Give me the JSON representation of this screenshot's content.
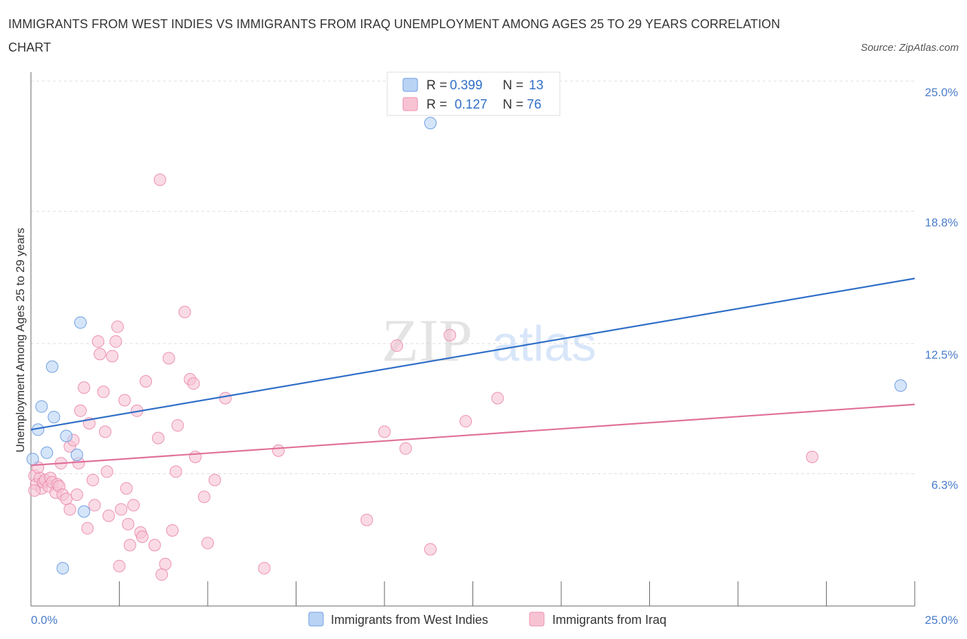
{
  "title": "IMMIGRANTS FROM WEST INDIES VS IMMIGRANTS FROM IRAQ UNEMPLOYMENT AMONG AGES 25 TO 29 YEARS CORRELATION CHART",
  "source": "Source: ZipAtlas.com",
  "watermark": {
    "zip": "ZIP",
    "atlas": "atlas"
  },
  "colors": {
    "blue": "#2f6ec7",
    "blue_fill": "#b9d3f5",
    "blue_stroke": "#6e9ee0",
    "pink": "#e0709a",
    "pink_fill": "#f7c3d3",
    "pink_stroke": "#ec8fb0",
    "grid": "#dddddd",
    "axis": "#666666"
  },
  "legend": {
    "r_label": "R =",
    "n_label": "N =",
    "blue": {
      "r": "0.399",
      "n": "13"
    },
    "pink": {
      "r": "0.127",
      "n": "76"
    }
  },
  "chart_data": {
    "type": "scatter",
    "title": "IMMIGRANTS FROM WEST INDIES VS IMMIGRANTS FROM IRAQ UNEMPLOYMENT AMONG AGES 25 TO 29 YEARS CORRELATION CHART",
    "xlabel": "",
    "ylabel": "Unemployment Among Ages 25 to 29 years",
    "xlim": [
      0,
      25
    ],
    "ylim": [
      0,
      25
    ],
    "x_tick_labels": [
      "0.0%",
      "25.0%"
    ],
    "y_ticks": [
      {
        "value": 6.3,
        "label": "6.3%"
      },
      {
        "value": 12.5,
        "label": "12.5%"
      },
      {
        "value": 18.8,
        "label": "18.8%"
      },
      {
        "value": 25.0,
        "label": "25.0%"
      }
    ],
    "series": [
      {
        "name": "Immigrants from West Indies",
        "color": "blue",
        "trend": [
          [
            0,
            8.4
          ],
          [
            25,
            15.6
          ]
        ],
        "points": [
          [
            0.05,
            7.0
          ],
          [
            0.2,
            8.4
          ],
          [
            0.3,
            9.5
          ],
          [
            0.45,
            7.3
          ],
          [
            0.6,
            11.4
          ],
          [
            0.65,
            9.0
          ],
          [
            1.0,
            8.1
          ],
          [
            1.3,
            7.2
          ],
          [
            1.4,
            13.5
          ],
          [
            1.5,
            4.5
          ],
          [
            0.9,
            1.8
          ],
          [
            11.3,
            23.0
          ],
          [
            24.6,
            10.5
          ]
        ]
      },
      {
        "name": "Immigrants from Iraq",
        "color": "pink",
        "trend": [
          [
            0,
            6.7
          ],
          [
            25,
            9.6
          ]
        ],
        "points": [
          [
            0.1,
            6.2
          ],
          [
            0.15,
            5.8
          ],
          [
            0.25,
            6.1
          ],
          [
            0.3,
            5.6
          ],
          [
            0.35,
            5.9
          ],
          [
            0.4,
            6.0
          ],
          [
            0.5,
            5.7
          ],
          [
            0.55,
            6.1
          ],
          [
            0.6,
            5.9
          ],
          [
            0.7,
            5.4
          ],
          [
            0.75,
            5.8
          ],
          [
            0.8,
            5.7
          ],
          [
            0.85,
            6.8
          ],
          [
            0.9,
            5.3
          ],
          [
            1.0,
            5.1
          ],
          [
            1.1,
            7.6
          ],
          [
            1.1,
            4.6
          ],
          [
            1.2,
            7.9
          ],
          [
            1.3,
            5.3
          ],
          [
            1.35,
            6.8
          ],
          [
            1.4,
            9.3
          ],
          [
            1.5,
            10.4
          ],
          [
            1.6,
            3.7
          ],
          [
            1.65,
            8.7
          ],
          [
            1.75,
            6.0
          ],
          [
            1.8,
            4.8
          ],
          [
            1.9,
            12.6
          ],
          [
            1.95,
            12.0
          ],
          [
            2.05,
            10.2
          ],
          [
            2.1,
            8.3
          ],
          [
            2.15,
            6.4
          ],
          [
            2.2,
            4.3
          ],
          [
            2.3,
            11.9
          ],
          [
            2.4,
            12.6
          ],
          [
            2.45,
            13.3
          ],
          [
            2.5,
            1.9
          ],
          [
            2.55,
            4.6
          ],
          [
            2.65,
            9.8
          ],
          [
            2.7,
            5.6
          ],
          [
            2.75,
            3.9
          ],
          [
            2.8,
            2.9
          ],
          [
            2.9,
            4.8
          ],
          [
            3.0,
            9.3
          ],
          [
            3.1,
            3.5
          ],
          [
            3.15,
            3.3
          ],
          [
            3.25,
            10.7
          ],
          [
            3.5,
            2.9
          ],
          [
            3.6,
            8.0
          ],
          [
            3.65,
            20.3
          ],
          [
            3.7,
            1.5
          ],
          [
            3.8,
            2.0
          ],
          [
            3.9,
            11.8
          ],
          [
            4.0,
            3.6
          ],
          [
            4.1,
            6.4
          ],
          [
            4.15,
            8.6
          ],
          [
            4.35,
            14.0
          ],
          [
            4.5,
            10.8
          ],
          [
            4.6,
            10.6
          ],
          [
            4.65,
            7.1
          ],
          [
            4.9,
            5.2
          ],
          [
            5.0,
            3.0
          ],
          [
            5.2,
            6.0
          ],
          [
            5.5,
            9.9
          ],
          [
            6.6,
            1.8
          ],
          [
            7.0,
            7.4
          ],
          [
            9.5,
            4.1
          ],
          [
            10.0,
            8.3
          ],
          [
            10.35,
            12.4
          ],
          [
            10.6,
            7.5
          ],
          [
            11.3,
            2.7
          ],
          [
            11.85,
            12.9
          ],
          [
            12.3,
            8.8
          ],
          [
            13.2,
            9.9
          ],
          [
            22.1,
            7.1
          ],
          [
            0.2,
            6.6
          ],
          [
            0.1,
            5.5
          ]
        ]
      }
    ]
  },
  "bottom_legend": [
    "Immigrants from West Indies",
    "Immigrants from Iraq"
  ]
}
